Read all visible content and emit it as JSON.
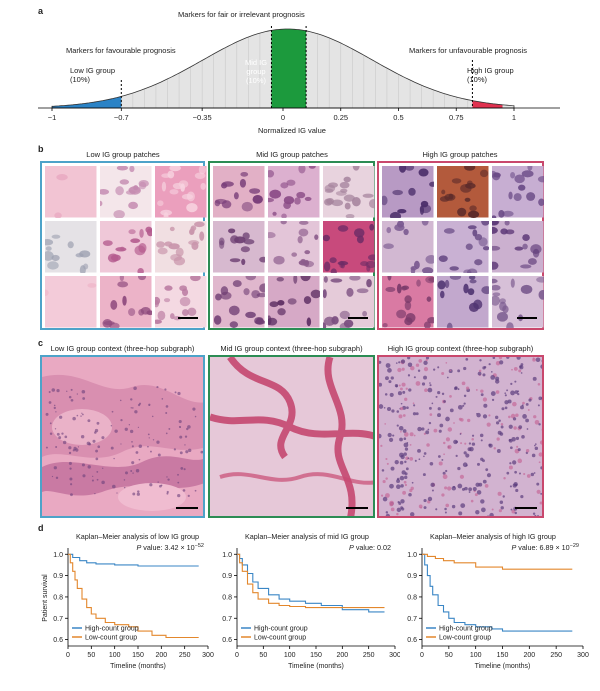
{
  "panels": {
    "a": "a",
    "b": "b",
    "c": "c",
    "d": "d"
  },
  "colors": {
    "low": "#2b83c6",
    "mid": "#1c9a3d",
    "high": "#e0314f",
    "tick_grey": "#c9c9c9",
    "high_count": "#3a86c5",
    "low_count": "#e3872c"
  },
  "panel_a": {
    "title_fair": "Markers for fair or irrelevant prognosis",
    "favourable": "Markers for favourable prognosis",
    "unfavourable": "Markers for unfavourable prognosis",
    "low_group": [
      "Low IG group",
      "(10%)"
    ],
    "mid_group": [
      "Mid IG",
      "group",
      "(10%)"
    ],
    "high_group": [
      "High IG group",
      "(10%)"
    ],
    "xlabel": "Normalized IG value",
    "ticks": [
      "−1",
      "−0.7",
      "−0.35",
      "0",
      "0.25",
      "0.5",
      "0.75",
      "1"
    ],
    "tick_values": [
      -1,
      -0.7,
      -0.35,
      0,
      0.25,
      0.5,
      0.75,
      1
    ]
  },
  "panel_b": {
    "low_title": "Low IG group patches",
    "mid_title": "Mid IG group patches",
    "high_title": "High IG group patches"
  },
  "panel_c": {
    "low_title": "Low IG group context (three-hop subgraph)",
    "mid_title": "Mid IG group context (three-hop subgraph)",
    "high_title": "High IG group context (three-hop subgraph)"
  },
  "panel_d": {
    "ylabel": "Patient survival",
    "xlabel": "Timeline (months)",
    "legend_high": "High-count group",
    "legend_low": "Low-count group",
    "xticks": [
      "0",
      "50",
      "100",
      "150",
      "200",
      "250",
      "300"
    ],
    "yticks": [
      "0.6",
      "0.7",
      "0.8",
      "0.9",
      "1.0"
    ],
    "plots": [
      {
        "title": "Kaplan–Meier analysis of low IG group",
        "pvalue_label": "P",
        "pvalue_text": " value: 3.42 × 10",
        "pvalue_exp": "−52"
      },
      {
        "title": "Kaplan–Meier analysis of mid IG group",
        "pvalue_label": "P",
        "pvalue_text": " value: 0.02",
        "pvalue_exp": ""
      },
      {
        "title": "Kaplan–Meier analysis of high IG group",
        "pvalue_label": "P",
        "pvalue_text": " value: 6.89 × 10",
        "pvalue_exp": "−29"
      }
    ]
  },
  "chart_data": [
    {
      "type": "area",
      "title": "",
      "xlabel": "Normalized IG value",
      "ylabel": "",
      "xlim": [
        -1,
        1
      ],
      "shaded_regions": [
        {
          "name": "Low IG group (10%)",
          "range": [
            -1,
            -0.7
          ]
        },
        {
          "name": "Mid IG group (10%)",
          "range": [
            -0.05,
            0.1
          ]
        },
        {
          "name": "High IG group (10%)",
          "range": [
            0.82,
            0.95
          ]
        }
      ]
    },
    {
      "type": "line",
      "title": "Kaplan–Meier analysis of low IG group",
      "xlabel": "Timeline (months)",
      "ylabel": "Patient survival",
      "xlim": [
        0,
        300
      ],
      "ylim": [
        0.57,
        1.02
      ],
      "series": [
        {
          "name": "High-count group",
          "x": [
            0,
            10,
            25,
            40,
            60,
            100,
            150,
            200,
            280
          ],
          "y": [
            1.0,
            0.985,
            0.97,
            0.96,
            0.955,
            0.95,
            0.945,
            0.945,
            0.945
          ]
        },
        {
          "name": "Low-count group",
          "x": [
            0,
            5,
            10,
            15,
            20,
            30,
            40,
            50,
            60,
            80,
            100,
            130,
            150,
            180,
            210,
            280
          ],
          "y": [
            1.0,
            0.96,
            0.92,
            0.88,
            0.84,
            0.79,
            0.75,
            0.72,
            0.7,
            0.68,
            0.67,
            0.66,
            0.64,
            0.62,
            0.61,
            0.61
          ]
        }
      ]
    },
    {
      "type": "line",
      "title": "Kaplan–Meier analysis of mid IG group",
      "xlabel": "Timeline (months)",
      "ylabel": "Patient survival",
      "xlim": [
        0,
        300
      ],
      "ylim": [
        0.57,
        1.02
      ],
      "series": [
        {
          "name": "High-count group",
          "x": [
            0,
            5,
            10,
            20,
            30,
            40,
            60,
            80,
            100,
            130,
            160,
            200,
            250,
            280
          ],
          "y": [
            1.0,
            0.98,
            0.95,
            0.91,
            0.87,
            0.84,
            0.81,
            0.79,
            0.78,
            0.77,
            0.76,
            0.74,
            0.73,
            0.73
          ]
        },
        {
          "name": "Low-count group",
          "x": [
            0,
            5,
            10,
            20,
            30,
            40,
            60,
            80,
            100,
            130,
            160,
            200,
            250,
            280
          ],
          "y": [
            1.0,
            0.96,
            0.92,
            0.86,
            0.82,
            0.79,
            0.77,
            0.76,
            0.755,
            0.75,
            0.75,
            0.75,
            0.75,
            0.75
          ]
        }
      ]
    },
    {
      "type": "line",
      "title": "Kaplan–Meier analysis of high IG group",
      "xlabel": "Timeline (months)",
      "ylabel": "Patient survival",
      "xlim": [
        0,
        300
      ],
      "ylim": [
        0.57,
        1.02
      ],
      "series": [
        {
          "name": "High-count group",
          "x": [
            0,
            5,
            10,
            15,
            20,
            30,
            40,
            50,
            60,
            80,
            100,
            130,
            150,
            200,
            280
          ],
          "y": [
            1.0,
            0.95,
            0.9,
            0.85,
            0.81,
            0.76,
            0.73,
            0.7,
            0.68,
            0.67,
            0.66,
            0.65,
            0.64,
            0.64,
            0.64
          ]
        },
        {
          "name": "Low-count group",
          "x": [
            0,
            10,
            25,
            40,
            60,
            100,
            150,
            200,
            280
          ],
          "y": [
            1.0,
            0.99,
            0.98,
            0.97,
            0.96,
            0.94,
            0.93,
            0.93,
            0.93
          ]
        }
      ]
    }
  ]
}
